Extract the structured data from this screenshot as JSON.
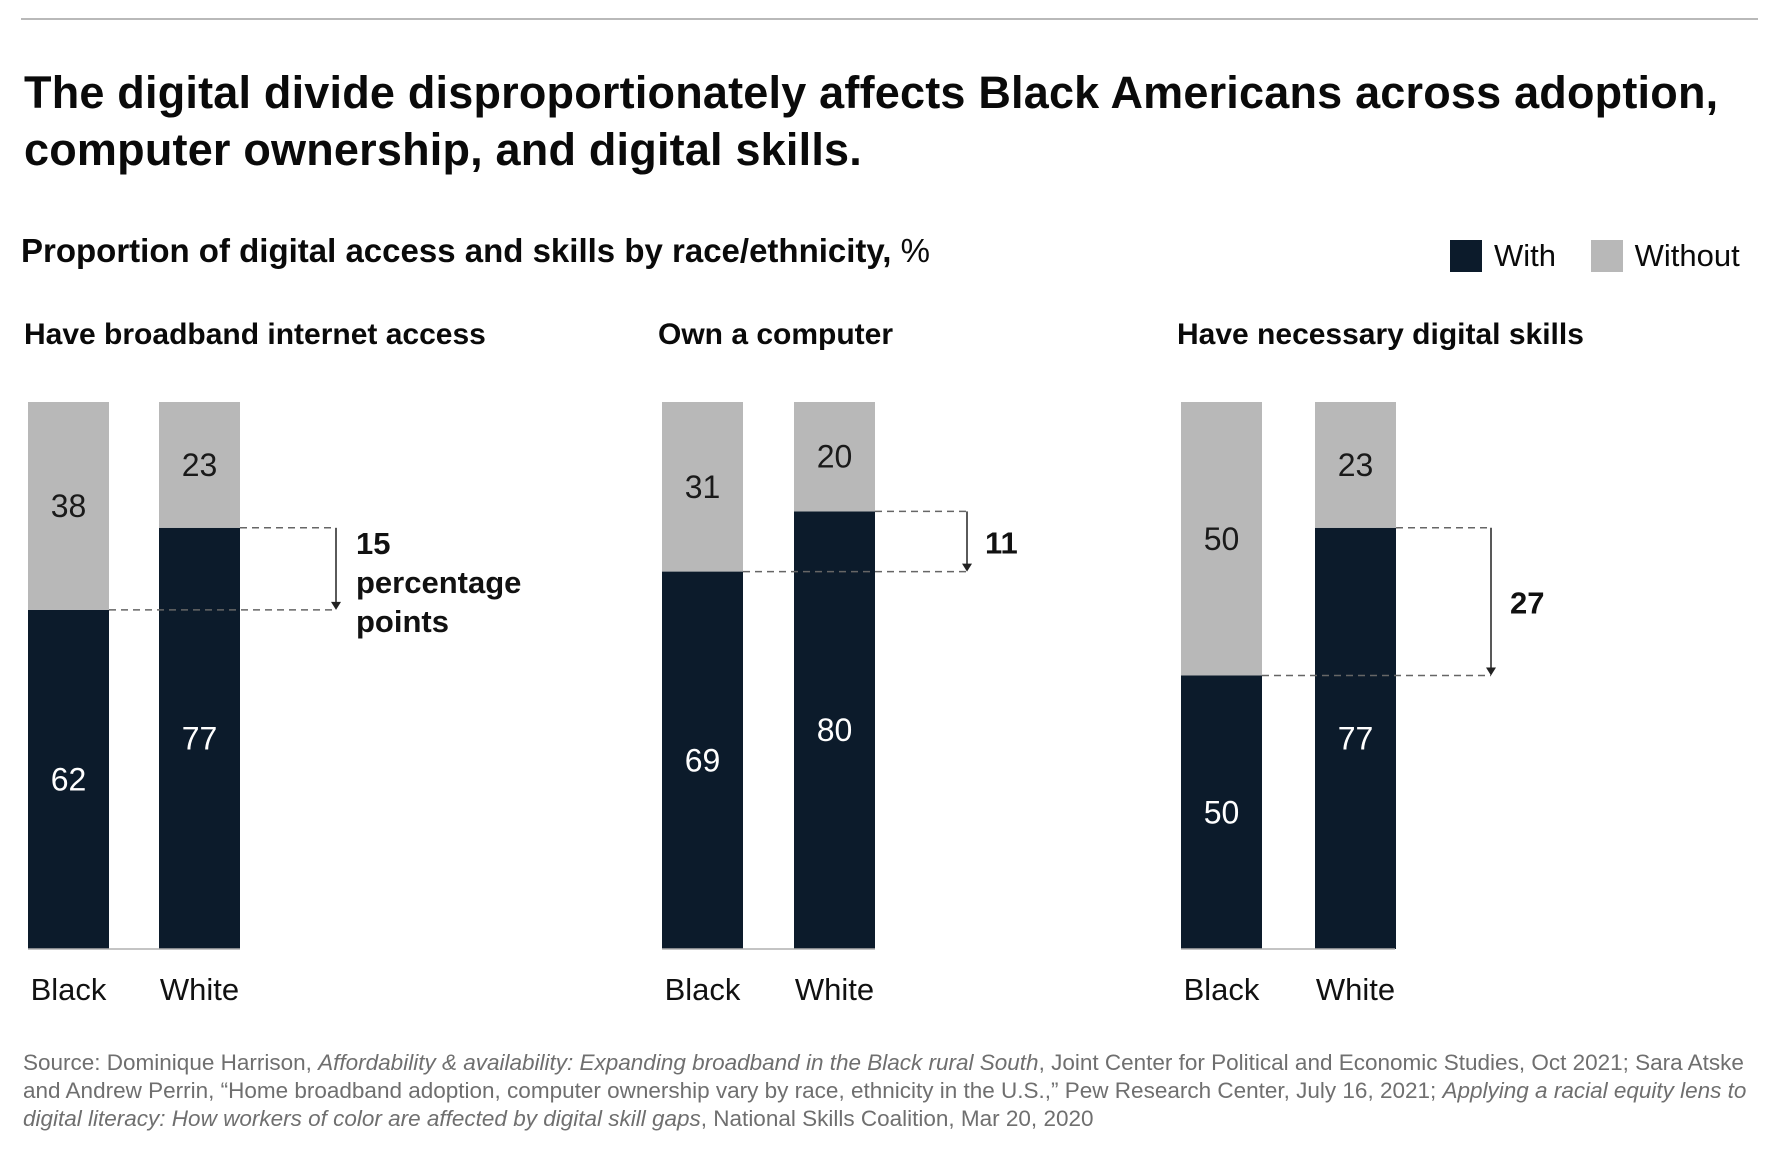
{
  "header": {
    "title": "The digital divide disproportionately affects Black Americans across adoption, computer ownership, and digital skills.",
    "subtitle": "Proportion of digital access and skills by race/ethnicity,",
    "subtitle_unit": "%"
  },
  "legend": {
    "with_label": "With",
    "without_label": "Without"
  },
  "colors": {
    "with": "#0c1b2b",
    "without": "#b8b8b8",
    "axis": "#b0b0b0",
    "guide": "#666666"
  },
  "chart_data": {
    "type": "bar",
    "stacked": true,
    "ylim": [
      0,
      100
    ],
    "grid": false,
    "legend_position": "top-right",
    "categories": [
      "Black",
      "White"
    ],
    "panels": [
      {
        "title": "Have broadband internet access",
        "series": [
          {
            "name": "With",
            "values": [
              62,
              77
            ]
          },
          {
            "name": "Without",
            "values": [
              38,
              23
            ]
          }
        ],
        "gap_annotation": [
          "15",
          "percentage",
          "points"
        ]
      },
      {
        "title": "Own a computer",
        "series": [
          {
            "name": "With",
            "values": [
              69,
              80
            ]
          },
          {
            "name": "Without",
            "values": [
              31,
              20
            ]
          }
        ],
        "gap_annotation": [
          "11"
        ]
      },
      {
        "title": "Have necessary digital skills",
        "series": [
          {
            "name": "With",
            "values": [
              50,
              77
            ]
          },
          {
            "name": "Without",
            "values": [
              50,
              23
            ]
          }
        ],
        "gap_annotation": [
          "27"
        ]
      }
    ]
  },
  "footer": {
    "source_parts": [
      {
        "text": "Source: Dominique Harrison, ",
        "italic": false
      },
      {
        "text": "Affordability & availability: Expanding broadband in the Black rural South",
        "italic": true
      },
      {
        "text": ", Joint Center for Political and Economic Studies, Oct 2021; Sara Atske and Andrew Perrin, “Home broadband adoption, computer ownership vary by race, ethnicity in the U.S.,” Pew Research Center, July 16, 2021; ",
        "italic": false
      },
      {
        "text": "Applying a racial equity lens to digital literacy: How workers of color are affected by digital skill gaps",
        "italic": true
      },
      {
        "text": ", National Skills Coalition, Mar 20, 2020",
        "italic": false
      }
    ]
  }
}
